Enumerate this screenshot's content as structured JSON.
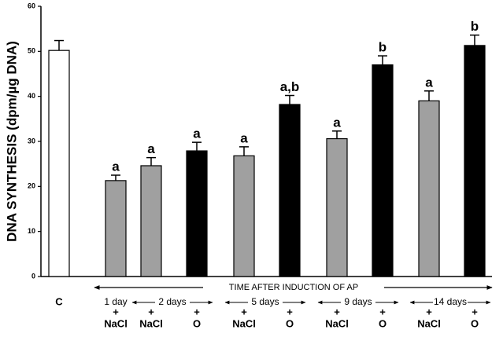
{
  "chart_data": {
    "type": "bar",
    "y_label": "DNA SYNTHESIS (dpm/µg DNA)",
    "ylim": [
      0,
      60
    ],
    "yticks": [
      0,
      10,
      20,
      30,
      40,
      50,
      60
    ],
    "categories": [
      "C",
      "NaCl",
      "NaCl",
      "O",
      "NaCl",
      "O",
      "NaCl",
      "O",
      "NaCl",
      "O"
    ],
    "treatment_sign": "+",
    "time_axis_label": "TIME AFTER INDUCTION OF AP",
    "time_groups": [
      "1 day",
      "2 days",
      "5 days",
      "9 days",
      "14 days"
    ],
    "series": [
      {
        "values": [
          50.2,
          21.3,
          24.6,
          27.9,
          26.8,
          38.2,
          30.6,
          47.0,
          39.0,
          51.3
        ],
        "errors": [
          2.2,
          1.2,
          1.8,
          1.9,
          2.0,
          2.0,
          1.7,
          2.0,
          2.2,
          2.3
        ],
        "colors": [
          "#ffffff",
          "#a0a0a0",
          "#a0a0a0",
          "#000000",
          "#a0a0a0",
          "#000000",
          "#a0a0a0",
          "#000000",
          "#a0a0a0",
          "#000000"
        ],
        "annotations": [
          null,
          "a",
          "a",
          "a",
          "a",
          "a,b",
          "a",
          "b",
          "a",
          "b"
        ]
      }
    ]
  }
}
